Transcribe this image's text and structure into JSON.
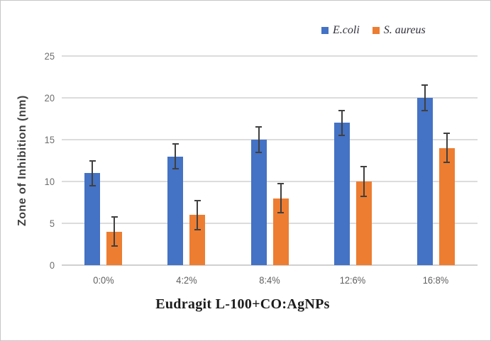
{
  "chart_data": {
    "type": "bar",
    "title": "",
    "categories": [
      "0:0%",
      "4:2%",
      "8:4%",
      "12:6%",
      "16:8%"
    ],
    "series": [
      {
        "name": "E.coli",
        "color": "#4472C4",
        "values": [
          11,
          13,
          15,
          17,
          20
        ],
        "error_bars": [
          1.5,
          1.5,
          1.5,
          1.5,
          1.5
        ]
      },
      {
        "name": "S. aureus",
        "color": "#ED7D31",
        "values": [
          4,
          6,
          8,
          10,
          14
        ],
        "error_bars": [
          1.75,
          1.75,
          1.75,
          1.75,
          1.75
        ]
      }
    ],
    "xlabel": "Eudragit L-100+CO:AgNPs",
    "ylabel": "Zone of Inhibition (nm)",
    "ylim": [
      0,
      25
    ],
    "yticks": [
      0,
      5,
      10,
      15,
      20,
      25
    ],
    "grid": "horizontal",
    "legend_position": "top-right",
    "colors": {
      "gridline": "#dcdcdc",
      "baseline": "#d0d0d0",
      "error_bar": "#404040",
      "tick_text": "#6e6e6e",
      "category_text": "#5f5f5f",
      "ylabel_text": "#3f3f3f",
      "xlabel_text": "#1c1c1c",
      "legend_text": "#30303a"
    }
  }
}
